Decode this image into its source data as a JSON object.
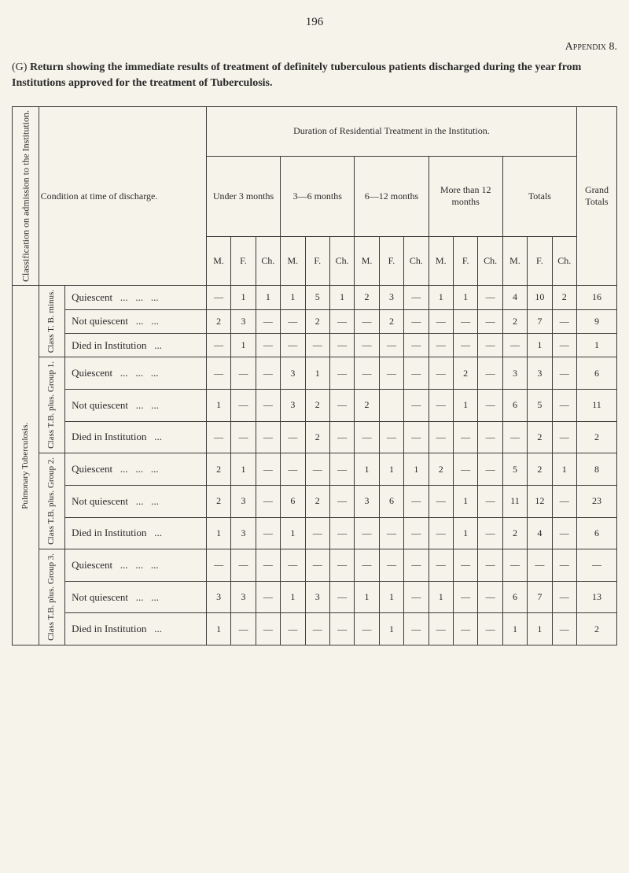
{
  "page_number": "196",
  "appendix": "Appendix 8.",
  "description_prefix": "(G) ",
  "description_text": "Return showing the immediate results of treatment of definitely tuberculous patients discharged during the year from Institutions approved for the treatment of Tuberculosis.",
  "vertical_labels": {
    "classification": "Classification on admission to the Institution.",
    "pulmonary": "Pulmonary Tuberculosis."
  },
  "group_labels": {
    "class_tb_minus": "Class T. B. minus.",
    "class_tb_plus_1": "Class T.B. plus. Group 1.",
    "class_tb_plus_2": "Class T.B. plus. Group 2.",
    "class_tb_plus_3": "Class T.B. plus. Group 3."
  },
  "header": {
    "condition": "Condition at time of discharge.",
    "duration": "Duration of Residential Treatment in the Institution.",
    "under3": "Under 3 months",
    "m3_6": "3—6 months",
    "m6_12": "6—12 months",
    "more12": "More than 12 months",
    "totals": "Totals",
    "grand": "Grand Totals",
    "m": "M.",
    "f": "F.",
    "ch": "Ch."
  },
  "conditions": {
    "quiescent": "Quiescent",
    "not_quiescent": "Not quiescent",
    "died": "Died in Institution"
  },
  "rows": {
    "g1": {
      "quiescent": [
        "—",
        "1",
        "1",
        "1",
        "5",
        "1",
        "2",
        "3",
        "—",
        "1",
        "1",
        "—",
        "4",
        "10",
        "2",
        "16"
      ],
      "not_quiescent": [
        "2",
        "3",
        "—",
        "—",
        "2",
        "—",
        "—",
        "2",
        "—",
        "—",
        "—",
        "—",
        "2",
        "7",
        "—",
        "9"
      ],
      "died": [
        "—",
        "1",
        "—",
        "—",
        "—",
        "—",
        "—",
        "—",
        "—",
        "—",
        "—",
        "—",
        "—",
        "1",
        "—",
        "1"
      ]
    },
    "g2": {
      "quiescent": [
        "—",
        "—",
        "—",
        "3",
        "1",
        "—",
        "—",
        "—",
        "—",
        "—",
        "2",
        "—",
        "3",
        "3",
        "—",
        "6"
      ],
      "not_quiescent": [
        "1",
        "—",
        "—",
        "3",
        "2",
        "—",
        "2",
        "2",
        "—",
        "—",
        "1",
        "—",
        "6",
        "5",
        "—",
        "11"
      ],
      "died": [
        "—",
        "—",
        "—",
        "—",
        "2",
        "—",
        "—",
        "—",
        "—",
        "—",
        "—",
        "—",
        "—",
        "2",
        "—",
        "2"
      ]
    },
    "g3": {
      "quiescent": [
        "2",
        "1",
        "—",
        "—",
        "—",
        "—",
        "1",
        "1",
        "1",
        "2",
        "—",
        "—",
        "5",
        "2",
        "1",
        "8"
      ],
      "not_quiescent": [
        "2",
        "3",
        "—",
        "6",
        "2",
        "—",
        "3",
        "6",
        "—",
        "—",
        "1",
        "—",
        "11",
        "12",
        "—",
        "23"
      ],
      "died": [
        "1",
        "3",
        "—",
        "1",
        "—",
        "—",
        "—",
        "—",
        "—",
        "—",
        "1",
        "—",
        "2",
        "4",
        "—",
        "6"
      ]
    },
    "g4": {
      "quiescent": [
        "—",
        "—",
        "—",
        "—",
        "—",
        "—",
        "—",
        "—",
        "—",
        "—",
        "—",
        "—",
        "—",
        "—",
        "—",
        "—"
      ],
      "not_quiescent": [
        "3",
        "3",
        "—",
        "1",
        "3",
        "—",
        "1",
        "1",
        "—",
        "1",
        "—",
        "—",
        "6",
        "7",
        "—",
        "13"
      ],
      "died": [
        "1",
        "—",
        "—",
        "—",
        "—",
        "—",
        "—",
        "1",
        "—",
        "—",
        "—",
        "—",
        "1",
        "1",
        "—",
        "2"
      ]
    }
  }
}
